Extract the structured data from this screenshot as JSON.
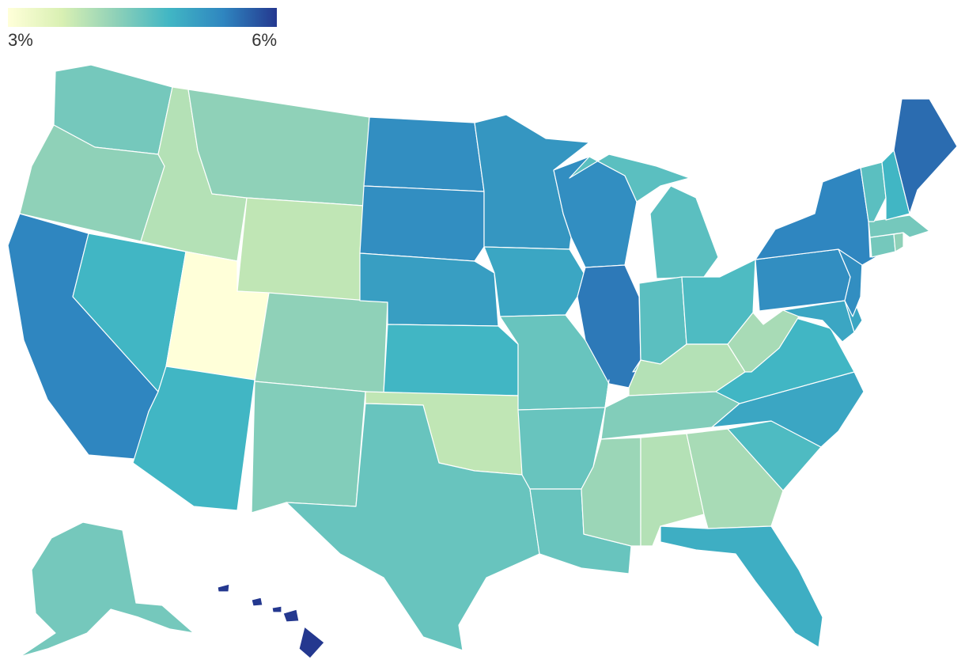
{
  "legend": {
    "min_label": "3%",
    "max_label": "6%",
    "scale_min": 3,
    "scale_max": 6,
    "colors": [
      "#ffffd9",
      "#d9f0b3",
      "#8fd1b8",
      "#41b6c4",
      "#2f86c0",
      "#24388f"
    ]
  },
  "states": {
    "WA": 4.4,
    "OR": 4.2,
    "CA": 5.4,
    "NV": 4.8,
    "ID": 3.9,
    "MT": 4.2,
    "WY": 3.8,
    "UT": 3.0,
    "AZ": 4.8,
    "CO": 4.2,
    "NM": 4.3,
    "ND": 5.3,
    "SD": 5.3,
    "NE": 5.1,
    "KS": 4.8,
    "OK": 3.8,
    "TX": 4.5,
    "MN": 5.2,
    "IA": 5.0,
    "MO": 4.5,
    "AR": 4.5,
    "LA": 4.5,
    "WI": 5.3,
    "IL": 5.5,
    "MI": 4.6,
    "IN": 4.6,
    "OH": 4.7,
    "KY": 3.9,
    "TN": 4.3,
    "MS": 4.1,
    "AL": 3.9,
    "GA": 4.0,
    "FL": 4.9,
    "SC": 4.7,
    "NC": 5.0,
    "VA": 4.8,
    "WV": 4.0,
    "PA": 5.3,
    "NY": 5.4,
    "NJ": 5.3,
    "DE": 5.0,
    "MD": 5.0,
    "ME": 5.6,
    "VT": 4.6,
    "NH": 4.8,
    "MA": 4.4,
    "CT": 4.4,
    "RI": 4.2,
    "AK": 4.4,
    "HI": 6.0
  }
}
